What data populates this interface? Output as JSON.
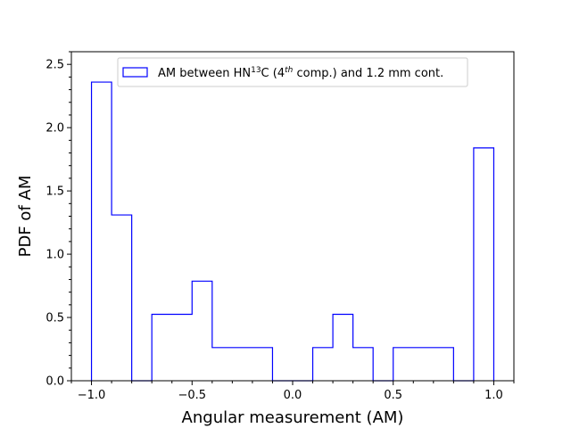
{
  "chart_data": {
    "type": "histogram",
    "xlabel": "Angular measurement (AM)",
    "ylabel": "PDF of AM",
    "xlim": [
      -1.1,
      1.1
    ],
    "ylim": [
      0,
      2.6
    ],
    "xticks": [
      -1.0,
      -0.5,
      0.0,
      0.5,
      1.0
    ],
    "xtick_labels": [
      "−1.0",
      "−0.5",
      "0.0",
      "0.5",
      "1.0"
    ],
    "yticks": [
      0.0,
      0.5,
      1.0,
      1.5,
      2.0,
      2.5
    ],
    "ytick_labels": [
      "0.0",
      "0.5",
      "1.0",
      "1.5",
      "2.0",
      "2.5"
    ],
    "bin_edges": [
      -1.0,
      -0.9,
      -0.8,
      -0.7,
      -0.6,
      -0.5,
      -0.4,
      -0.3,
      -0.2,
      -0.1,
      0.0,
      0.1,
      0.2,
      0.3,
      0.4,
      0.5,
      0.6,
      0.7,
      0.8,
      0.9,
      1.0
    ],
    "values": [
      2.36,
      1.31,
      0,
      0.525,
      0.525,
      0.787,
      0.262,
      0.262,
      0.262,
      0,
      0,
      0.262,
      0.525,
      0.262,
      0,
      0.262,
      0.262,
      0.262,
      0,
      1.84
    ],
    "color": "#0000ff",
    "histtype": "step",
    "legend": {
      "placement": "upper-center",
      "label_parts": {
        "pre": "AM between HN",
        "sup1": "13",
        "mid": "C (4",
        "sup2": "th",
        "post": " comp.) and 1.2 mm cont."
      }
    }
  }
}
